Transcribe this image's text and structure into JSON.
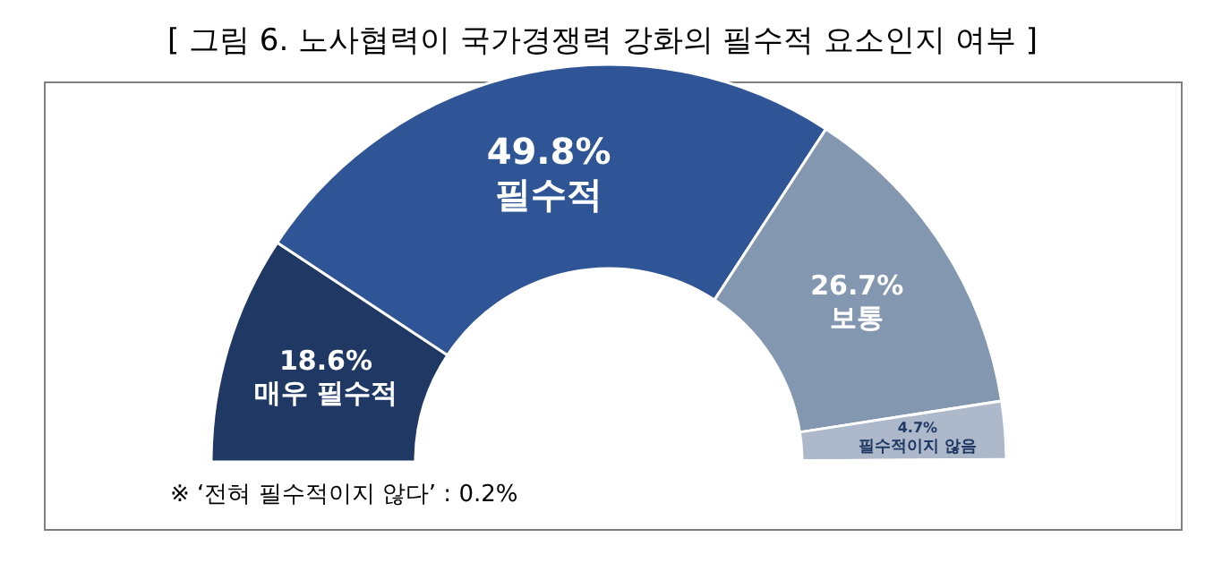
{
  "chart_data": {
    "type": "donut",
    "title": "[ 그림 6. 노사협력이 국가경쟁력 강화의 필수적 요소인지 여부 ]",
    "categories": [
      "매우 필수적",
      "필수적",
      "보통",
      "필수적이지 않음",
      null
    ],
    "values": [
      18.6,
      49.8,
      26.7,
      4.7,
      0.2
    ],
    "colors": [
      "#1f3864",
      "#2f5597",
      "#8497b0",
      "#adb9ca",
      "#a6a6a6"
    ],
    "value_labels": [
      "18.6%",
      "49.8%",
      "26.7%",
      "4.7%",
      null
    ],
    "annotations": [
      "※ ‘전혀 필수적이지 않다’ : 0.2%"
    ]
  }
}
